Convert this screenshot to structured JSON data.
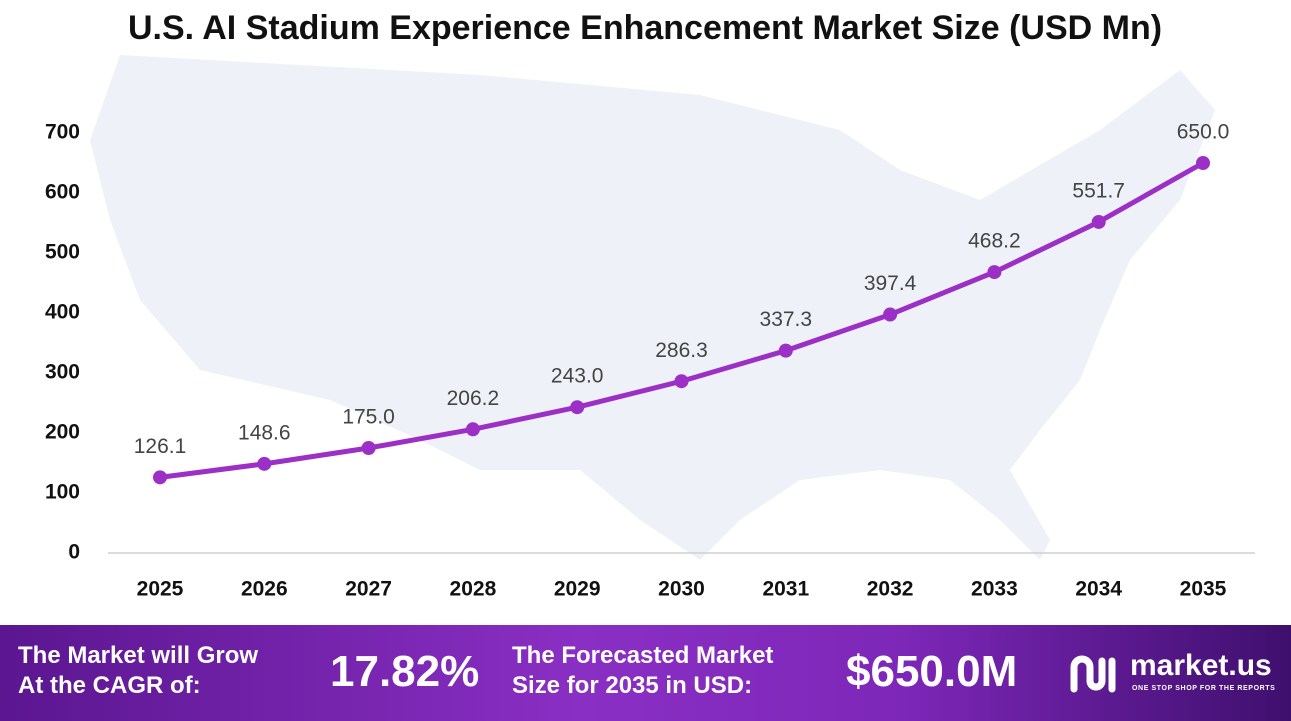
{
  "chart_data": {
    "type": "line",
    "title": "U.S. AI Stadium Experience Enhancement Market Size (USD Mn)",
    "categories": [
      "2025",
      "2026",
      "2027",
      "2028",
      "2029",
      "2030",
      "2031",
      "2032",
      "2033",
      "2034",
      "2035"
    ],
    "values": [
      126.1,
      148.6,
      175.0,
      206.2,
      243.0,
      286.3,
      337.3,
      397.4,
      468.2,
      551.7,
      650.0
    ],
    "value_labels": [
      "126.1",
      "148.6",
      "175.0",
      "206.2",
      "243.0",
      "286.3",
      "337.3",
      "397.4",
      "468.2",
      "551.7",
      "650.0"
    ],
    "color": "#9b2fc6",
    "ylim": [
      0,
      700
    ],
    "yticks": [
      0,
      100,
      200,
      300,
      400,
      500,
      600,
      700
    ],
    "grid": false
  },
  "footer": {
    "cagr_label": [
      "The Market will Grow",
      "At the CAGR of:"
    ],
    "cagr_value": "17.82%",
    "forecast_label": [
      "The Forecasted Market",
      "Size for 2035 in USD:"
    ],
    "forecast_value": "$650.0M",
    "brand": "market.us",
    "tagline": "ONE STOP SHOP FOR THE REPORTS"
  }
}
